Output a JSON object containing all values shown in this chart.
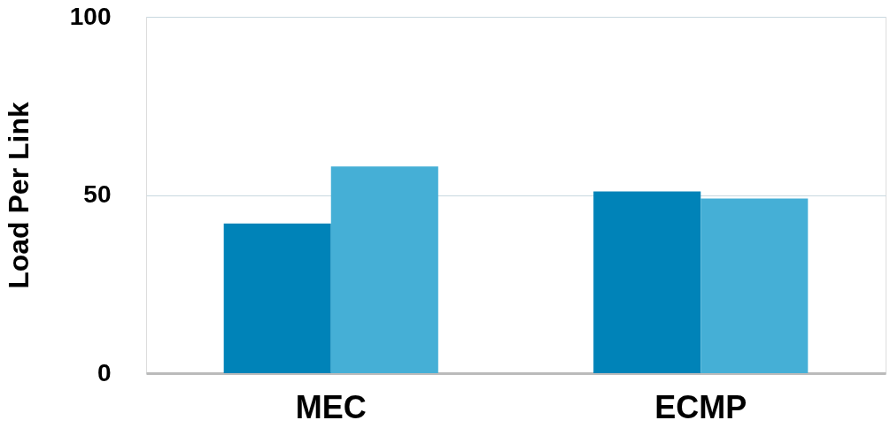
{
  "chart_data": {
    "type": "bar",
    "ylabel": "Load Per Link",
    "categories": [
      "MEC",
      "ECMP"
    ],
    "series": [
      {
        "color": "#0083b8",
        "values": [
          42,
          51
        ]
      },
      {
        "color": "#45afd6",
        "values": [
          58,
          49
        ]
      }
    ],
    "ylim": [
      0,
      100
    ],
    "yticks": [
      0,
      50,
      100
    ],
    "grid": "y",
    "legend": false
  }
}
